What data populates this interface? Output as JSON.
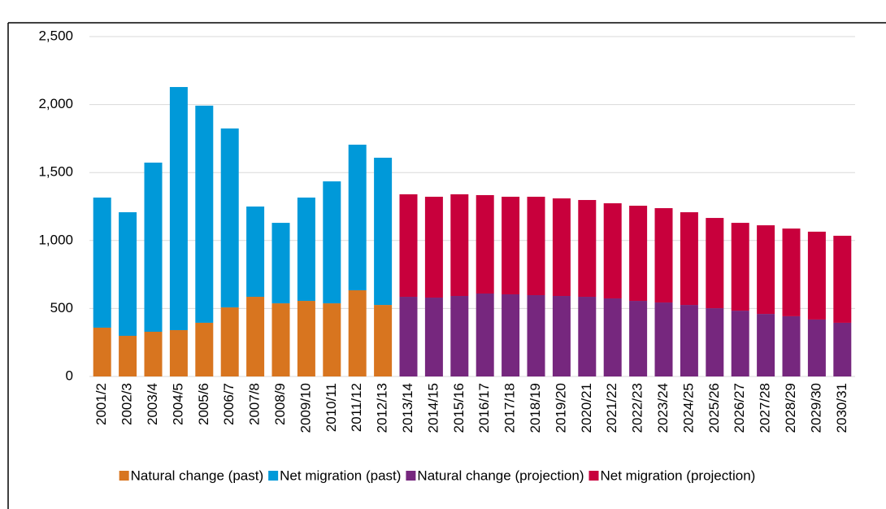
{
  "chart_data": {
    "type": "stacked_bar",
    "categories": [
      "2001/2",
      "2002/3",
      "2003/4",
      "2004/5",
      "2005/6",
      "2006/7",
      "2007/8",
      "2008/9",
      "2009/10",
      "2010/11",
      "2011/12",
      "2012/13",
      "2013/14",
      "2014/15",
      "2015/16",
      "2016/17",
      "2017/18",
      "2018/19",
      "2019/20",
      "2020/21",
      "2021/22",
      "2022/23",
      "2023/24",
      "2024/25",
      "2025/26",
      "2026/27",
      "2027/28",
      "2028/29",
      "2029/30",
      "2030/31"
    ],
    "series": [
      {
        "name": "Natural change (past)",
        "color": "#d8751f",
        "values": [
          359,
          299,
          329,
          341,
          395,
          508,
          586,
          538,
          556,
          538,
          634,
          526,
          null,
          null,
          null,
          null,
          null,
          null,
          null,
          null,
          null,
          null,
          null,
          null,
          null,
          null,
          null,
          null,
          null,
          null
        ]
      },
      {
        "name": "Net migration (past)",
        "color": "#0099d9",
        "values": [
          957,
          909,
          1244,
          1788,
          1597,
          1316,
          664,
          592,
          760,
          897,
          1071,
          1083,
          null,
          null,
          null,
          null,
          null,
          null,
          null,
          null,
          null,
          null,
          null,
          null,
          null,
          null,
          null,
          null,
          null,
          null
        ]
      },
      {
        "name": "Natural change (projection)",
        "color": "#76277e",
        "values": [
          null,
          null,
          null,
          null,
          null,
          null,
          null,
          null,
          null,
          null,
          null,
          null,
          586,
          580,
          592,
          610,
          604,
          598,
          592,
          586,
          574,
          556,
          544,
          526,
          502,
          484,
          460,
          443,
          419,
          395
        ]
      },
      {
        "name": "Net migration (projection)",
        "color": "#c8003c",
        "values": [
          null,
          null,
          null,
          null,
          null,
          null,
          null,
          null,
          null,
          null,
          null,
          null,
          754,
          742,
          748,
          724,
          718,
          724,
          718,
          712,
          700,
          700,
          694,
          682,
          664,
          646,
          652,
          645,
          646,
          640
        ]
      }
    ],
    "ylim": [
      0,
      2500
    ],
    "yticks": [
      0,
      500,
      {
        "value": 1000,
        "label": "1,000"
      },
      {
        "value": 1500,
        "label": "1,500"
      },
      {
        "value": 2000,
        "label": "2,000"
      },
      {
        "value": 2500,
        "label": "2,500"
      }
    ],
    "grid": true
  }
}
